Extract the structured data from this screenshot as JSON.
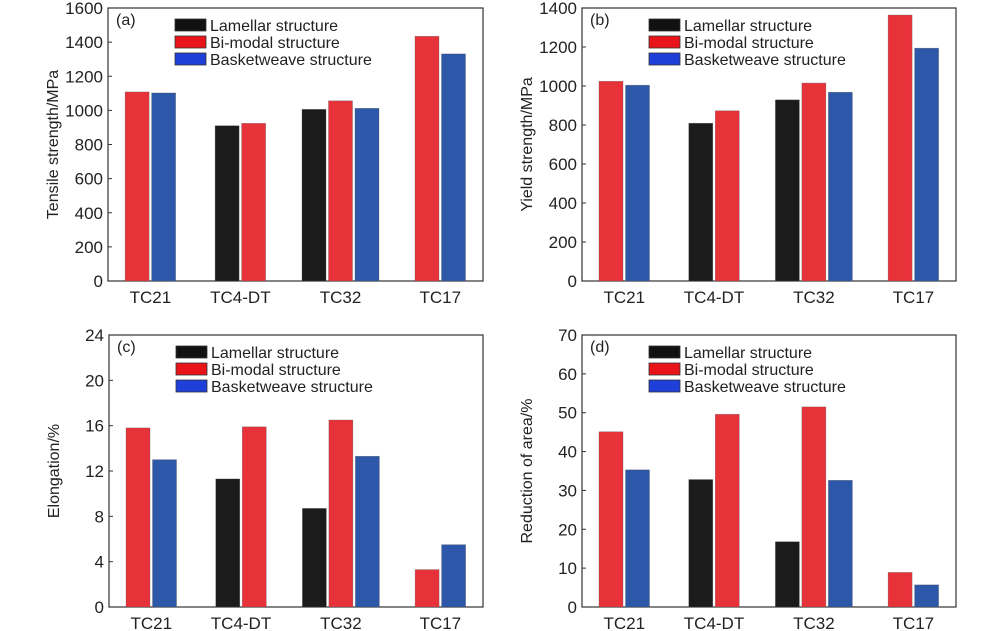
{
  "figure": {
    "legend": [
      {
        "key": "lamellar",
        "label": "Lamellar structure",
        "swatch_color": "#111111",
        "bar_color": "#1b1b1b"
      },
      {
        "key": "bimodal",
        "label": "Bi-modal structure",
        "swatch_color": "#e8141a",
        "bar_color": "#e8323a"
      },
      {
        "key": "basketweave",
        "label": "Basketweave structure",
        "swatch_color": "#1e3fd8",
        "bar_color": "#2d57a8"
      }
    ]
  },
  "chart_data": [
    {
      "type": "bar",
      "panel": "(a)",
      "title": "",
      "xlabel": "",
      "ylabel": "Tensile strength/MPa",
      "ylim": [
        0,
        1600
      ],
      "yticks": [
        0,
        200,
        400,
        600,
        800,
        1000,
        1200,
        1400,
        1600
      ],
      "categories": [
        "TC21",
        "TC4-DT",
        "TC32",
        "TC17"
      ],
      "legend_position": "top-center",
      "grid": false,
      "series": [
        {
          "name": "Lamellar structure",
          "values": [
            null,
            910,
            1006,
            null
          ]
        },
        {
          "name": "Bi-modal structure",
          "values": [
            1108,
            924,
            1056,
            1434
          ]
        },
        {
          "name": "Basketweave structure",
          "values": [
            1102,
            null,
            1012,
            1331
          ]
        }
      ]
    },
    {
      "type": "bar",
      "panel": "(b)",
      "title": "",
      "xlabel": "",
      "ylabel": "Yield strength/MPa",
      "ylim": [
        0,
        1400
      ],
      "yticks": [
        0,
        200,
        400,
        600,
        800,
        1000,
        1200,
        1400
      ],
      "categories": [
        "TC21",
        "TC4-DT",
        "TC32",
        "TC17"
      ],
      "legend_position": "top-center",
      "grid": false,
      "series": [
        {
          "name": "Lamellar structure",
          "values": [
            null,
            809,
            929,
            null
          ]
        },
        {
          "name": "Bi-modal structure",
          "values": [
            1024,
            873,
            1015,
            1364
          ]
        },
        {
          "name": "Basketweave structure",
          "values": [
            1004,
            null,
            968,
            1194
          ]
        }
      ]
    },
    {
      "type": "bar",
      "panel": "(c)",
      "title": "",
      "xlabel": "",
      "ylabel": "Elongation/%",
      "ylim": [
        0,
        24
      ],
      "yticks": [
        0,
        4,
        8,
        12,
        16,
        20,
        24
      ],
      "categories": [
        "TC21",
        "TC4-DT",
        "TC32",
        "TC17"
      ],
      "legend_position": "top-center",
      "grid": false,
      "series": [
        {
          "name": "Lamellar structure",
          "values": [
            null,
            11.3,
            8.7,
            null
          ]
        },
        {
          "name": "Bi-modal structure",
          "values": [
            15.8,
            15.9,
            16.5,
            3.3
          ]
        },
        {
          "name": "Basketweave structure",
          "values": [
            13.0,
            null,
            13.3,
            5.5
          ]
        }
      ]
    },
    {
      "type": "bar",
      "panel": "(d)",
      "title": "",
      "xlabel": "",
      "ylabel": "Reduction of area/%",
      "ylim": [
        0,
        70
      ],
      "yticks": [
        0,
        10,
        20,
        30,
        40,
        50,
        60,
        70
      ],
      "categories": [
        "TC21",
        "TC4-DT",
        "TC32",
        "TC17"
      ],
      "legend_position": "top-center",
      "grid": false,
      "series": [
        {
          "name": "Lamellar structure",
          "values": [
            null,
            32.8,
            16.8,
            null
          ]
        },
        {
          "name": "Bi-modal structure",
          "values": [
            45.1,
            49.6,
            51.5,
            8.9
          ]
        },
        {
          "name": "Basketweave structure",
          "values": [
            35.3,
            null,
            32.6,
            5.7
          ]
        }
      ]
    }
  ]
}
